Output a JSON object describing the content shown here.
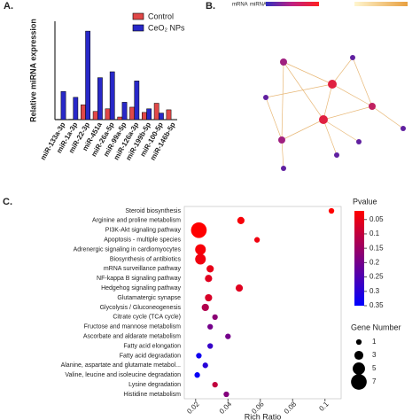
{
  "panels": [
    "A.",
    "B.",
    "C."
  ],
  "network": {
    "legend": [
      "mRNA",
      "miRNA"
    ]
  },
  "chart_data": [
    {
      "type": "bar",
      "ylabel": "Relative miRNA expression",
      "categories": [
        "miR-133a-3p",
        "miR-1a-3p",
        "miR-22-3p",
        "miR-451a",
        "miR-26a-5p",
        "miR-99a-5p",
        "miR-126a-3p",
        "miR-199b-5p",
        "miR-100-5p",
        "miR-146b-5p"
      ],
      "series": [
        {
          "name": "Control",
          "color": "#e04848",
          "values": [
            1,
            1,
            45,
            25,
            33,
            8,
            38,
            22,
            50,
            30
          ]
        },
        {
          "name": "CeO₂ NPs",
          "color": "#2828c8",
          "values": [
            86,
            68,
            270,
            128,
            146,
            53,
            118,
            33,
            20,
            0
          ]
        }
      ],
      "ylim": [
        0,
        300
      ]
    },
    {
      "type": "bubble",
      "xlabel": "Rich Ratio",
      "categories": [
        "Steroid biosynthesis",
        "Arginine and proline metabolism",
        "PI3K-Akt signaling pathway",
        "Apoptosis - multiple species",
        "Adrenergic signaling in cardiomyocytes",
        "Biosynthesis of antibiotics",
        "mRNA surveillance pathway",
        "NF-kappa B signaling pathway",
        "Hedgehog signaling pathway",
        "Glutamatergic synapse",
        "Glycolysis / Gluconeogenesis",
        "Citrate cycle (TCA cycle)",
        "Fructose and mannose metabolism",
        "Ascorbate and aldarate metabolism",
        "Fatty acid elongation",
        "Fatty acid degradation",
        "Alanine, aspartate and glutamate metabol...",
        "Valine, leucine and isoleucine degradation",
        "Lysine degradation",
        "Histidine metabolism"
      ],
      "x": [
        0.104,
        0.048,
        0.022,
        0.058,
        0.023,
        0.023,
        0.029,
        0.028,
        0.047,
        0.028,
        0.026,
        0.032,
        0.029,
        0.04,
        0.029,
        0.022,
        0.026,
        0.021,
        0.032,
        0.039
      ],
      "pvalues": [
        0.02,
        0.03,
        0.02,
        0.04,
        0.03,
        0.04,
        0.05,
        0.06,
        0.06,
        0.07,
        0.12,
        0.17,
        0.2,
        0.2,
        0.28,
        0.33,
        0.3,
        0.34,
        0.1,
        0.18
      ],
      "sizes": [
        1,
        2,
        7,
        1,
        4,
        4,
        2,
        2,
        2,
        2,
        2,
        1,
        1,
        1,
        1,
        1,
        1,
        1,
        1,
        1
      ],
      "xlim": [
        0.013,
        0.11
      ],
      "xticks": [
        0.02,
        0.04,
        0.06,
        0.08,
        0.1
      ],
      "colorbar_title": "Pvalue",
      "clim": [
        0.02,
        0.35
      ],
      "colors": [
        "#ff0000",
        "#0000ff"
      ],
      "cticks": [
        0.05,
        0.1,
        0.15,
        0.2,
        0.25,
        0.3,
        0.35
      ],
      "size_title": "Gene Number",
      "size_ticks": [
        1,
        3,
        5,
        7
      ]
    }
  ]
}
